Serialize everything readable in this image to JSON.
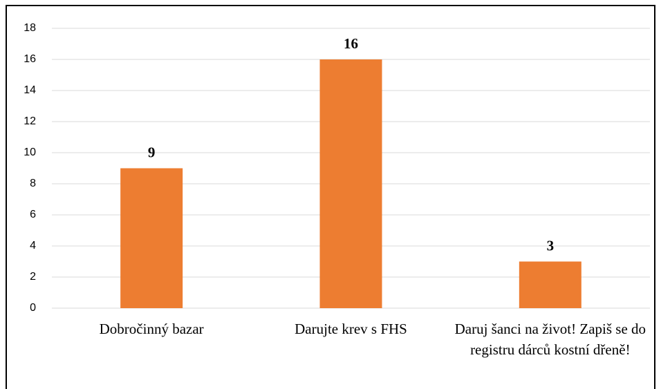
{
  "chart_data": {
    "type": "bar",
    "categories": [
      "Dobročinný bazar",
      "Darujte krev s FHS",
      "Daruj šanci na život! Zapiš se do registru dárců kostní dřeně!"
    ],
    "values": [
      9,
      16,
      3
    ],
    "color": "#ed7d31",
    "ylim": [
      0,
      18
    ],
    "yticks": [
      0,
      2,
      4,
      6,
      8,
      10,
      12,
      14,
      16,
      18
    ],
    "grid": true
  }
}
